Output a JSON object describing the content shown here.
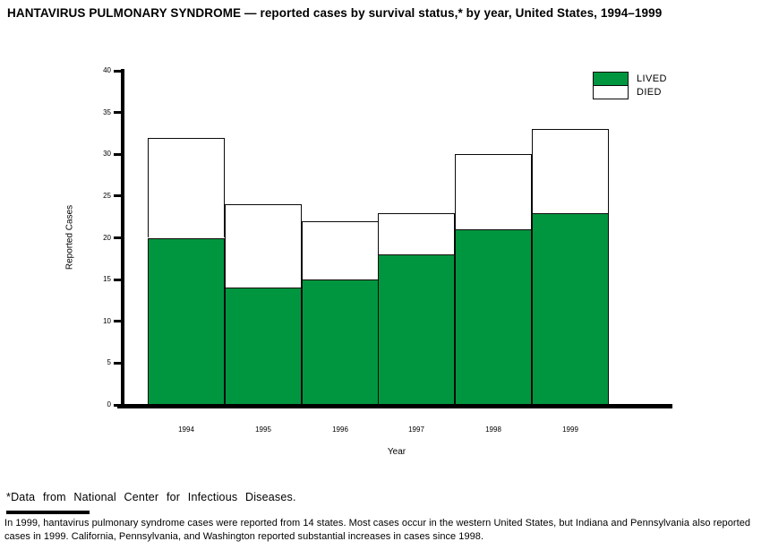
{
  "title": "HANTAVIRUS PULMONARY SYNDROME — reported cases by survival status,* by year, United States, 1994–1999",
  "chart_data": {
    "type": "bar",
    "stacked": true,
    "categories": [
      "1994",
      "1995",
      "1996",
      "1997",
      "1998",
      "1999"
    ],
    "series": [
      {
        "name": "LIVED",
        "color": "#009640",
        "values": [
          20,
          14,
          15,
          18,
          21,
          23
        ]
      },
      {
        "name": "DIED",
        "color": "#ffffff",
        "values": [
          12,
          10,
          7,
          5,
          9,
          10
        ]
      }
    ],
    "totals": [
      32,
      24,
      22,
      23,
      30,
      33
    ],
    "xlabel": "Year",
    "ylabel": "Reported Cases",
    "ylim": [
      0,
      40
    ],
    "ytick_step": 5,
    "yticks": [
      0,
      5,
      10,
      15,
      20,
      25,
      30,
      35,
      40
    ],
    "grid": false,
    "legend_position": "top-right",
    "bar_outline_color": "#0a0a0a"
  },
  "footnote": "*Data from National Center for Infectious Diseases.",
  "note": "In 1999, hantavirus pulmonary syndrome cases were reported from 14 states. Most cases occur in the western United States, but Indiana and Pennsylvania also reported cases in 1999. California, Pennsylvania, and Washington reported substantial increases in cases since 1998."
}
